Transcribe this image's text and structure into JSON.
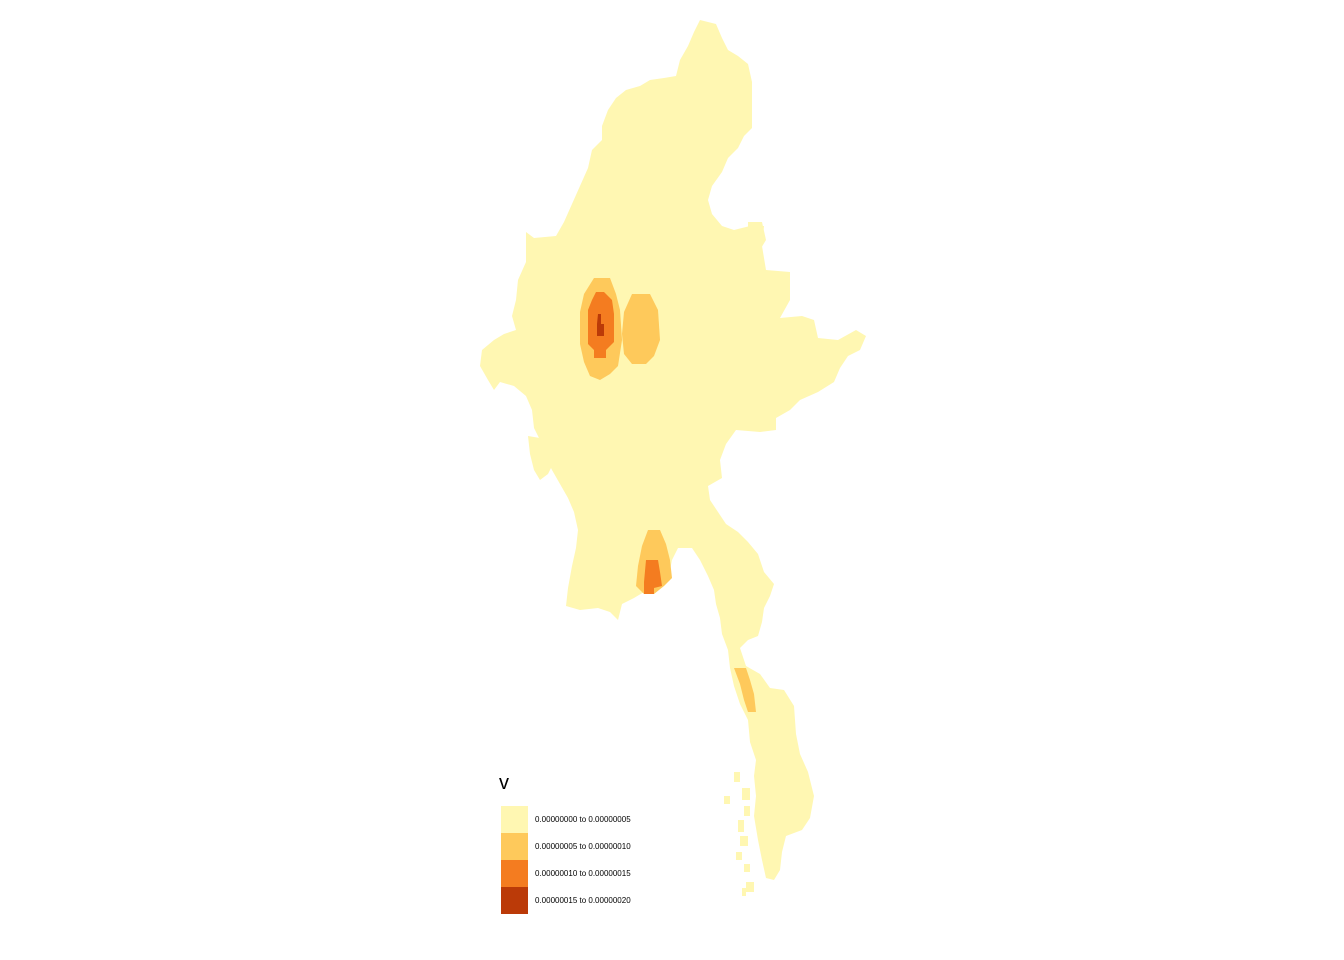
{
  "map": {
    "region": "Myanmar",
    "variable": "v",
    "style": "raster choropleth"
  },
  "legend": {
    "title": "v",
    "classes": [
      {
        "label": "0.00000000 to 0.00000005",
        "color": "#FFF7B2"
      },
      {
        "label": "0.00000005 to 0.00000010",
        "color": "#FEC95B"
      },
      {
        "label": "0.00000010 to 0.00000015",
        "color": "#F47C20"
      },
      {
        "label": "0.00000015 to 0.00000020",
        "color": "#BB3A08"
      }
    ]
  }
}
